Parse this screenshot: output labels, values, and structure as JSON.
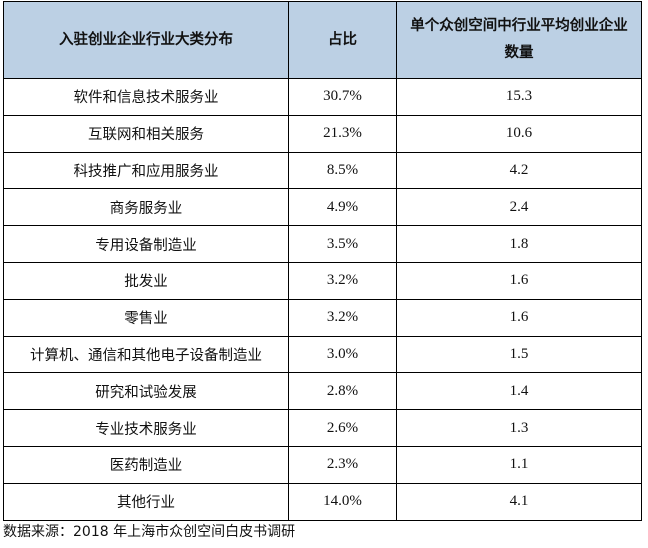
{
  "table": {
    "headers": [
      "入驻创业企业行业大类分布",
      "占比",
      "单个众创空间中行业平均创业企业数量"
    ],
    "rows": [
      {
        "industry": "软件和信息技术服务业",
        "share": "30.7%",
        "avg": "15.3"
      },
      {
        "industry": "互联网和相关服务",
        "share": "21.3%",
        "avg": "10.6"
      },
      {
        "industry": "科技推广和应用服务业",
        "share": "8.5%",
        "avg": "4.2"
      },
      {
        "industry": "商务服务业",
        "share": "4.9%",
        "avg": "2.4"
      },
      {
        "industry": "专用设备制造业",
        "share": "3.5%",
        "avg": "1.8"
      },
      {
        "industry": "批发业",
        "share": "3.2%",
        "avg": "1.6"
      },
      {
        "industry": "零售业",
        "share": "3.2%",
        "avg": "1.6"
      },
      {
        "industry": "计算机、通信和其他电子设备制造业",
        "share": "3.0%",
        "avg": "1.5"
      },
      {
        "industry": "研究和试验发展",
        "share": "2.8%",
        "avg": "1.4"
      },
      {
        "industry": "专业技术服务业",
        "share": "2.6%",
        "avg": "1.3"
      },
      {
        "industry": "医药制造业",
        "share": "2.3%",
        "avg": "1.1"
      },
      {
        "industry": "其他行业",
        "share": "14.0%",
        "avg": "4.1"
      }
    ]
  },
  "source": "数据来源：2018 年上海市众创空间白皮书调研",
  "colors": {
    "header_bg": "#bcd0e4",
    "border": "#000000"
  }
}
